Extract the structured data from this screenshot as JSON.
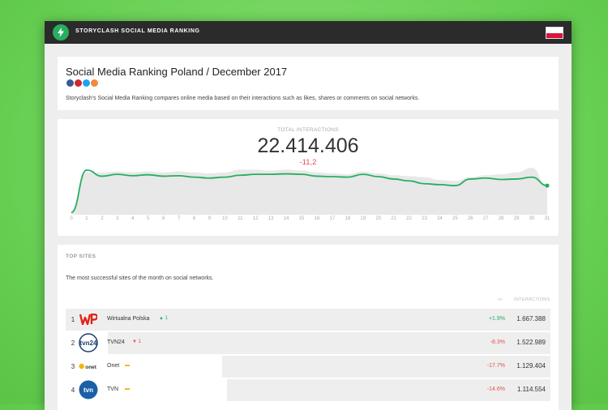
{
  "header": {
    "title": "STORYCLASH SOCIAL MEDIA RANKING",
    "logo_icon": "lightning-icon",
    "flag_icon": "poland-flag-icon",
    "colors": {
      "bar": "#2b2b2b",
      "logo": "#27ae60"
    }
  },
  "intro": {
    "title": "Social Media Ranking Poland / December 2017",
    "share_icons": [
      "facebook-icon",
      "youtube-icon",
      "twitter-icon",
      "instagram-icon"
    ],
    "description": "Storyclash's Social Media Ranking compares online media based on their interactions such as likes, shares or comments on social networks."
  },
  "total": {
    "label": "TOTAL INTERACTIONS",
    "value": "22.414.406",
    "change": "-11,2"
  },
  "chart_data": {
    "type": "area",
    "x": [
      0,
      1,
      2,
      3,
      4,
      5,
      6,
      7,
      8,
      9,
      10,
      11,
      12,
      13,
      14,
      15,
      16,
      17,
      18,
      19,
      20,
      21,
      22,
      23,
      24,
      25,
      26,
      27,
      28,
      29,
      30,
      31
    ],
    "x_tick_labels": [
      "0",
      "1",
      "2",
      "3",
      "4",
      "5",
      "6",
      "7",
      "8",
      "9",
      "10",
      "11",
      "12",
      "13",
      "14",
      "15",
      "16",
      "17",
      "18",
      "19",
      "20",
      "21",
      "22",
      "23",
      "24",
      "25",
      "26",
      "27",
      "28",
      "29",
      "30",
      "31"
    ],
    "series": [
      {
        "values": [
          0.05,
          0.95,
          0.82,
          0.86,
          0.83,
          0.85,
          0.82,
          0.83,
          0.8,
          0.78,
          0.8,
          0.84,
          0.86,
          0.86,
          0.87,
          0.86,
          0.82,
          0.81,
          0.8,
          0.86,
          0.81,
          0.76,
          0.72,
          0.66,
          0.64,
          0.62,
          0.76,
          0.78,
          0.75,
          0.76,
          0.8,
          0.62
        ]
      },
      {
        "values": [
          0.05,
          0.9,
          0.9,
          0.92,
          0.9,
          0.92,
          0.9,
          0.92,
          0.9,
          0.88,
          0.9,
          0.96,
          0.96,
          0.94,
          0.96,
          0.94,
          0.9,
          0.88,
          0.86,
          0.92,
          0.88,
          0.84,
          0.82,
          0.8,
          0.74,
          0.72,
          0.8,
          0.84,
          0.86,
          0.9,
          1.0,
          0.62
        ]
      }
    ],
    "colors": [
      "#27ae60",
      "#e8e8e8"
    ],
    "ylim": [
      0,
      1
    ]
  },
  "top_sites": {
    "label": "TOP SITES",
    "description": "The most successful sites of the month on social networks.",
    "col_change": "+/-",
    "col_interactions": "INTERACTIONS",
    "rows": [
      {
        "rank": "1",
        "name": "Wirtualna Polska",
        "trend": "▲ 1",
        "trend_color": "#27ae60",
        "change": "+1.9%",
        "change_color": "#27ae60",
        "value": "1.667.388",
        "share": 1.0,
        "logo": "wp-logo"
      },
      {
        "rank": "2",
        "name": "TVN24",
        "trend": "▼ 1",
        "trend_color": "#e05050",
        "change": "-8.3%",
        "change_color": "#e05050",
        "value": "1.522.989",
        "share": 0.913,
        "logo": "tvn24-logo"
      },
      {
        "rank": "3",
        "name": "Onet",
        "trend": "▬",
        "trend_color": "#f0b400",
        "change": "-17.7%",
        "change_color": "#e05050",
        "value": "1.129.404",
        "share": 0.677,
        "logo": "onet-logo"
      },
      {
        "rank": "4",
        "name": "TVN",
        "trend": "▬",
        "trend_color": "#f0b400",
        "change": "-14.6%",
        "change_color": "#e05050",
        "value": "1.114.554",
        "share": 0.668,
        "logo": "tvn-logo"
      }
    ]
  }
}
